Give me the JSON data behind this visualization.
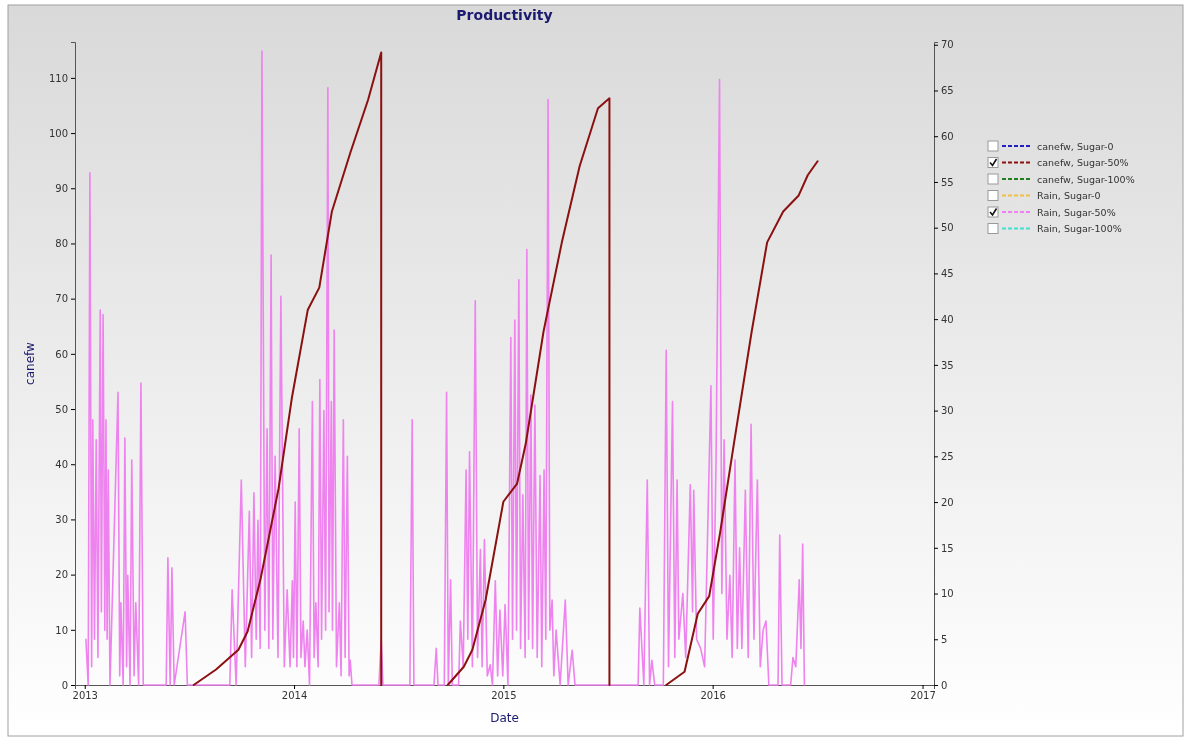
{
  "chart_data": {
    "type": "line",
    "title": "Productivity",
    "xlabel": "Date",
    "ylabel": "canefw",
    "xlim": [
      "2012-12-15",
      "2017-01-21"
    ],
    "xticks": [
      {
        "value": "2013-01-01",
        "label": "2013"
      },
      {
        "value": "2014-01-01",
        "label": "2014"
      },
      {
        "value": "2015-01-01",
        "label": "2015"
      },
      {
        "value": "2016-01-01",
        "label": "2016"
      },
      {
        "value": "2017-01-01",
        "label": "2017"
      }
    ],
    "ylim": [
      0,
      116.5
    ],
    "yticks": [
      0,
      10,
      20,
      30,
      40,
      50,
      60,
      70,
      80,
      90,
      100,
      110
    ],
    "y2lim": [
      0,
      70.3
    ],
    "y2ticks": [
      0,
      5,
      10,
      15,
      20,
      25,
      30,
      35,
      40,
      45,
      50,
      55,
      60,
      65,
      70
    ],
    "legend": "right",
    "grid": false,
    "series": [
      {
        "name": "canefw, Sugar-0",
        "color": "#2020c0"
      },
      {
        "name": "canefw, Sugar-50%",
        "color": "#8b1010",
        "x": [
          "2013-07-10",
          "2013-08-18",
          "2013-09-26",
          "2013-10-12",
          "2013-11-04",
          "2013-12-05",
          "2013-12-28",
          "2014-01-25",
          "2014-02-14",
          "2014-03-08",
          "2014-04-09",
          "2014-05-10",
          "2014-06-02",
          "2014-06-02",
          "2014-08-01",
          "2014-09-26",
          "2014-10-24",
          "2014-11-08",
          "2014-12-01",
          "2015-01-01",
          "2015-01-25",
          "2015-02-09",
          "2015-03-12",
          "2015-04-13",
          "2015-05-14",
          "2015-06-15",
          "2015-07-05",
          "2015-07-05",
          "2015-09-01",
          "2015-10-12",
          "2015-11-13",
          "2015-12-06",
          "2015-12-26",
          "2016-01-14",
          "2016-02-07",
          "2016-03-09",
          "2016-04-05",
          "2016-05-03",
          "2016-05-30",
          "2016-06-15",
          "2016-07-02"
        ],
        "values": [
          0,
          2.8,
          6.4,
          9.7,
          19.4,
          35.6,
          51.9,
          68,
          72,
          85.8,
          96.4,
          106,
          114.6,
          0,
          null,
          0,
          3.3,
          6.4,
          15.4,
          33.2,
          36.5,
          43.7,
          64,
          80.2,
          94,
          104.5,
          106.3,
          0,
          null,
          0,
          2.4,
          12.9,
          16.1,
          27.6,
          43.7,
          64,
          80.2,
          85.8,
          88.7,
          92.4,
          94.9
        ]
      },
      {
        "name": "canefw, Sugar-100%",
        "color": "#208020"
      },
      {
        "name": "Rain, Sugar-0",
        "color": "#f0c040",
        "axis": "y2"
      },
      {
        "name": "Rain, Sugar-50%",
        "color": "#ee82ee",
        "axis": "y2",
        "x": [
          "2013-01-03",
          "2013-01-07",
          "2013-01-10",
          "2013-01-13",
          "2013-01-15",
          "2013-01-18",
          "2013-01-21",
          "2013-01-24",
          "2013-01-28",
          "2013-01-30",
          "2013-02-02",
          "2013-02-05",
          "2013-02-07",
          "2013-02-09",
          "2013-02-11",
          "2013-02-14",
          "2013-02-28",
          "2013-03-03",
          "2013-03-05",
          "2013-03-09",
          "2013-03-12",
          "2013-03-15",
          "2013-03-17",
          "2013-03-21",
          "2013-03-24",
          "2013-03-28",
          "2013-03-31",
          "2013-04-05",
          "2013-04-09",
          "2013-04-13",
          "2013-05-23",
          "2013-05-26",
          "2013-05-30",
          "2013-06-02",
          "2013-06-06",
          "2013-06-25",
          "2013-06-29",
          "2013-09-11",
          "2013-09-15",
          "2013-09-22",
          "2013-10-01",
          "2013-10-08",
          "2013-10-15",
          "2013-10-19",
          "2013-10-23",
          "2013-10-27",
          "2013-10-30",
          "2013-11-03",
          "2013-11-06",
          "2013-11-11",
          "2013-11-15",
          "2013-11-18",
          "2013-11-22",
          "2013-11-25",
          "2013-11-29",
          "2013-12-04",
          "2013-12-09",
          "2013-12-15",
          "2013-12-20",
          "2013-12-25",
          "2013-12-29",
          "2013-12-31",
          "2014-01-03",
          "2014-01-06",
          "2014-01-10",
          "2014-01-13",
          "2014-01-17",
          "2014-01-20",
          "2014-01-24",
          "2014-01-28",
          "2014-02-02",
          "2014-02-05",
          "2014-02-08",
          "2014-02-12",
          "2014-02-15",
          "2014-02-18",
          "2014-02-22",
          "2014-02-25",
          "2014-03-01",
          "2014-03-03",
          "2014-03-07",
          "2014-03-09",
          "2014-03-12",
          "2014-03-16",
          "2014-03-21",
          "2014-03-24",
          "2014-03-28",
          "2014-03-31",
          "2014-04-04",
          "2014-04-07",
          "2014-04-09",
          "2014-04-12",
          "2014-05-29",
          "2014-06-02",
          "2014-06-05",
          "2014-07-22",
          "2014-07-26",
          "2014-07-29",
          "2014-09-02",
          "2014-09-06",
          "2014-09-09",
          "2014-09-20",
          "2014-09-24",
          "2014-09-27",
          "2014-10-01",
          "2014-10-04",
          "2014-10-15",
          "2014-10-18",
          "2014-10-23",
          "2014-10-28",
          "2014-10-31",
          "2014-11-03",
          "2014-11-08",
          "2014-11-13",
          "2014-11-17",
          "2014-11-22",
          "2014-11-25",
          "2014-11-29",
          "2014-12-04",
          "2014-12-09",
          "2014-12-13",
          "2014-12-18",
          "2014-12-22",
          "2014-12-26",
          "2014-12-31",
          "2015-01-04",
          "2015-01-09",
          "2015-01-14",
          "2015-01-17",
          "2015-01-21",
          "2015-01-24",
          "2015-01-28",
          "2015-01-31",
          "2015-02-04",
          "2015-02-08",
          "2015-02-11",
          "2015-02-14",
          "2015-02-18",
          "2015-02-21",
          "2015-02-25",
          "2015-03-01",
          "2015-03-06",
          "2015-03-09",
          "2015-03-13",
          "2015-03-16",
          "2015-03-20",
          "2015-03-23",
          "2015-03-27",
          "2015-03-30",
          "2015-04-03",
          "2015-04-10",
          "2015-04-19",
          "2015-04-24",
          "2015-05-01",
          "2015-05-06",
          "2015-08-24",
          "2015-08-27",
          "2015-09-03",
          "2015-09-09",
          "2015-09-13",
          "2015-09-17",
          "2015-09-22",
          "2015-10-07",
          "2015-10-12",
          "2015-10-16",
          "2015-10-23",
          "2015-10-27",
          "2015-10-31",
          "2015-11-03",
          "2015-11-10",
          "2015-11-15",
          "2015-11-23",
          "2015-11-27",
          "2015-11-29",
          "2015-12-04",
          "2015-12-11",
          "2015-12-18",
          "2015-12-29",
          "2016-01-02",
          "2016-01-07",
          "2016-01-13",
          "2016-01-17",
          "2016-01-21",
          "2016-01-26",
          "2016-01-31",
          "2016-02-04",
          "2016-02-09",
          "2016-02-13",
          "2016-02-17",
          "2016-02-21",
          "2016-02-27",
          "2016-03-03",
          "2016-03-08",
          "2016-03-13",
          "2016-03-19",
          "2016-03-24",
          "2016-03-29",
          "2016-04-03",
          "2016-04-08",
          "2016-04-24",
          "2016-04-27",
          "2016-05-01",
          "2016-05-16",
          "2016-05-20",
          "2016-05-25",
          "2016-05-31",
          "2016-06-03",
          "2016-06-06",
          "2016-06-09"
        ],
        "values": [
          5,
          0,
          56,
          2,
          29,
          5,
          26.8,
          3,
          41,
          8,
          40.5,
          6,
          29,
          5,
          23.5,
          0,
          32,
          1,
          9,
          0,
          27,
          2,
          12,
          0,
          24.6,
          1,
          9,
          0,
          33,
          0,
          0,
          13.9,
          0,
          12.8,
          0,
          8,
          0,
          0,
          10.4,
          0,
          22.4,
          2,
          19,
          3,
          21,
          5,
          18,
          4,
          69.3,
          6,
          28,
          4,
          47,
          5,
          25,
          3,
          42.5,
          2,
          10.4,
          2,
          11.4,
          3,
          20,
          2,
          28,
          3,
          7,
          2,
          6,
          0,
          31,
          3,
          9,
          2,
          33.4,
          5,
          30,
          6,
          65.3,
          8,
          31,
          6,
          38.8,
          2,
          9,
          1,
          29,
          3,
          25,
          1,
          2.7,
          0,
          0,
          5,
          0,
          0,
          29,
          0,
          0,
          4,
          0,
          0,
          32,
          0,
          11.5,
          0,
          0,
          7,
          2,
          23.5,
          5,
          25.5,
          2,
          42,
          3,
          14.8,
          2,
          15.9,
          1,
          2.2,
          0,
          11.4,
          1,
          8.2,
          1,
          8.8,
          0,
          38,
          5,
          39.9,
          6,
          44.3,
          4,
          20.8,
          3,
          47.6,
          5,
          31.7,
          4,
          30.6,
          3,
          22.9,
          2,
          23.5,
          5,
          64,
          6,
          9.3,
          1,
          6,
          0,
          9.3,
          0,
          3.8,
          0,
          0,
          8.4,
          0,
          22.4,
          0,
          2.7,
          0,
          0,
          36.6,
          2,
          31,
          3,
          22.4,
          5,
          10,
          3,
          21.9,
          8,
          21.3,
          5,
          4,
          2,
          32.7,
          5,
          25,
          66.2,
          10,
          26.8,
          5,
          12,
          3,
          24.6,
          4,
          15,
          4,
          21.3,
          3,
          28.5,
          5,
          22.4,
          2,
          6,
          7,
          0,
          0,
          16.4,
          0,
          0,
          3,
          2,
          11.5,
          4,
          15.4,
          0
        ]
      },
      {
        "name": "Rain, Sugar-100%",
        "color": "#40e0d0",
        "axis": "y2"
      }
    ]
  }
}
